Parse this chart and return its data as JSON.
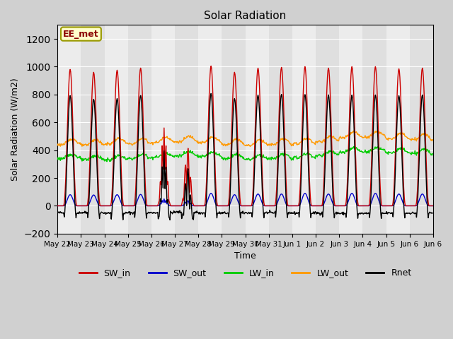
{
  "title": "Solar Radiation",
  "ylabel": "Solar Radiation (W/m2)",
  "xlabel": "Time",
  "ylim": [
    -200,
    1300
  ],
  "yticks": [
    -200,
    0,
    200,
    400,
    600,
    800,
    1000,
    1200
  ],
  "n_days": 16,
  "dt_hours": 0.5,
  "colors": {
    "SW_in": "#cc0000",
    "SW_out": "#0000cc",
    "LW_in": "#00cc00",
    "LW_out": "#ff9900",
    "Rnet": "#000000"
  },
  "linewidth": 1.0,
  "legend_label": "EE_met",
  "fig_facecolor": "#d0d0d0",
  "ax_facecolor": "#e8e8e8",
  "tick_dates": [
    "May 22",
    "May 23",
    "May 24",
    "May 25",
    "May 26",
    "May 27",
    "May 28",
    "May 29",
    "May 30",
    "May 31",
    "Jun 1",
    "Jun 2",
    "Jun 3",
    "Jun 4",
    "Jun 5",
    "Jun 6",
    "Jun 6"
  ],
  "sw_in_peaks": [
    980,
    960,
    975,
    990,
    560,
    420,
    1005,
    960,
    990,
    995,
    1000,
    990,
    1000,
    1000,
    985,
    990
  ],
  "sw_out_peaks": [
    80,
    78,
    80,
    82,
    50,
    38,
    90,
    80,
    85,
    85,
    90,
    85,
    90,
    90,
    85,
    85
  ],
  "lw_in_base": [
    340,
    330,
    330,
    340,
    350,
    360,
    355,
    340,
    335,
    340,
    345,
    360,
    385,
    390,
    380,
    375
  ],
  "lw_out_base": [
    440,
    435,
    445,
    445,
    455,
    460,
    455,
    440,
    435,
    440,
    445,
    460,
    490,
    495,
    480,
    475
  ],
  "rnet_night_vals": [
    -50,
    -48,
    -52,
    -50,
    -48,
    -45,
    -52,
    -52,
    -50,
    -50,
    -52,
    -52,
    -55,
    -55,
    -52,
    -52
  ]
}
